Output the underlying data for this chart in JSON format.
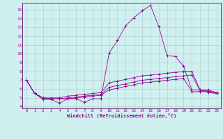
{
  "xlabel": "Windchill (Refroidissement éolien,°C)",
  "bg_color": "#cff0ee",
  "grid_color": "#aacccc",
  "line_color": "#990099",
  "spine_color": "#660066",
  "xlim": [
    -0.5,
    23.5
  ],
  "ylim": [
    3.8,
    15.8
  ],
  "xticks": [
    0,
    1,
    2,
    3,
    4,
    5,
    6,
    7,
    8,
    9,
    10,
    11,
    12,
    13,
    14,
    15,
    16,
    17,
    18,
    19,
    20,
    21,
    22,
    23
  ],
  "yticks": [
    4,
    5,
    6,
    7,
    8,
    9,
    10,
    11,
    12,
    13,
    14,
    15
  ],
  "series": [
    [
      7.0,
      5.5,
      4.8,
      4.8,
      4.4,
      4.9,
      4.9,
      4.5,
      4.9,
      4.9,
      10.1,
      11.5,
      13.2,
      14.1,
      14.9,
      15.5,
      13.1,
      9.8,
      9.7,
      8.6,
      5.9,
      5.9,
      5.6,
      5.5
    ],
    [
      7.0,
      5.5,
      5.0,
      5.0,
      5.0,
      5.2,
      5.3,
      5.4,
      5.5,
      5.6,
      6.7,
      6.9,
      7.1,
      7.3,
      7.5,
      7.6,
      7.7,
      7.8,
      7.9,
      8.0,
      8.0,
      5.9,
      5.9,
      5.6
    ],
    [
      7.0,
      5.5,
      5.0,
      4.9,
      4.9,
      5.0,
      5.1,
      5.2,
      5.3,
      5.4,
      6.2,
      6.4,
      6.6,
      6.8,
      7.0,
      7.1,
      7.2,
      7.3,
      7.4,
      7.5,
      7.6,
      5.8,
      5.8,
      5.5
    ],
    [
      7.0,
      5.5,
      5.0,
      4.9,
      4.9,
      4.9,
      5.0,
      5.1,
      5.2,
      5.3,
      5.9,
      6.1,
      6.3,
      6.5,
      6.7,
      6.8,
      6.9,
      7.0,
      7.1,
      7.2,
      5.7,
      5.7,
      5.7,
      5.5
    ]
  ]
}
